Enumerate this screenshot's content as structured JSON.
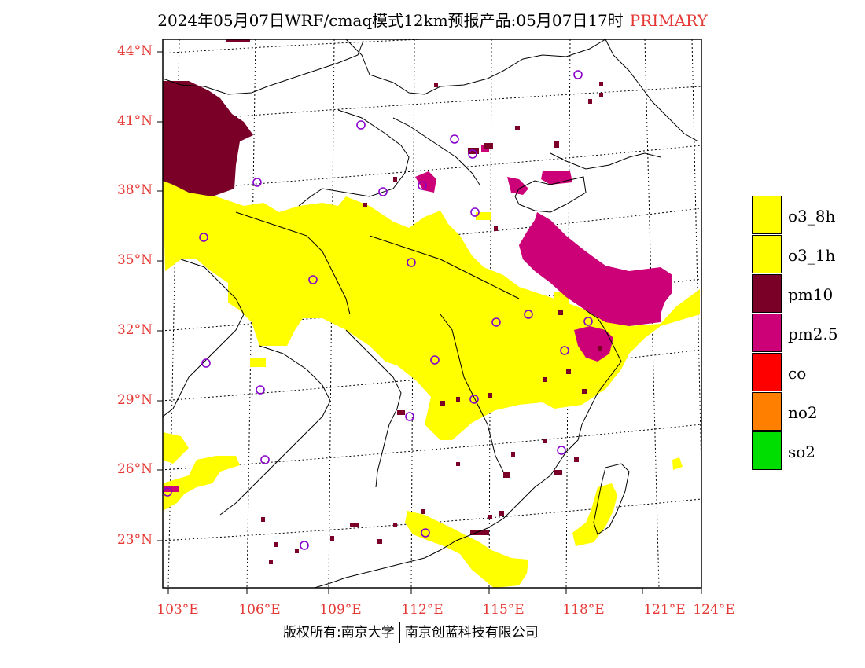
{
  "title": {
    "main": "2024年05月07日WRF/cmaq模式12km预报产品:05月07日17时",
    "tag": "PRIMARY"
  },
  "axes": {
    "lat_labels": [
      "44°N",
      "41°N",
      "38°N",
      "35°N",
      "32°N",
      "29°N",
      "26°N",
      "23°N"
    ],
    "lon_labels": [
      "103°E",
      "106°E",
      "109°E",
      "112°E",
      "115°E",
      "118°E",
      "121°E",
      "124°E"
    ]
  },
  "legend": [
    {
      "label": "o3_8h",
      "color": "#ffff00"
    },
    {
      "label": "o3_1h",
      "color": "#ffff00"
    },
    {
      "label": "pm10",
      "color": "#7b0028"
    },
    {
      "label": "pm2.5",
      "color": "#cc0077"
    },
    {
      "label": "co",
      "color": "#ff0000"
    },
    {
      "label": "no2",
      "color": "#ff8000"
    },
    {
      "label": "so2",
      "color": "#00dd00"
    }
  ],
  "footer": {
    "left": "版权所有:南京大学",
    "right": "南京创蓝科技有限公司"
  }
}
